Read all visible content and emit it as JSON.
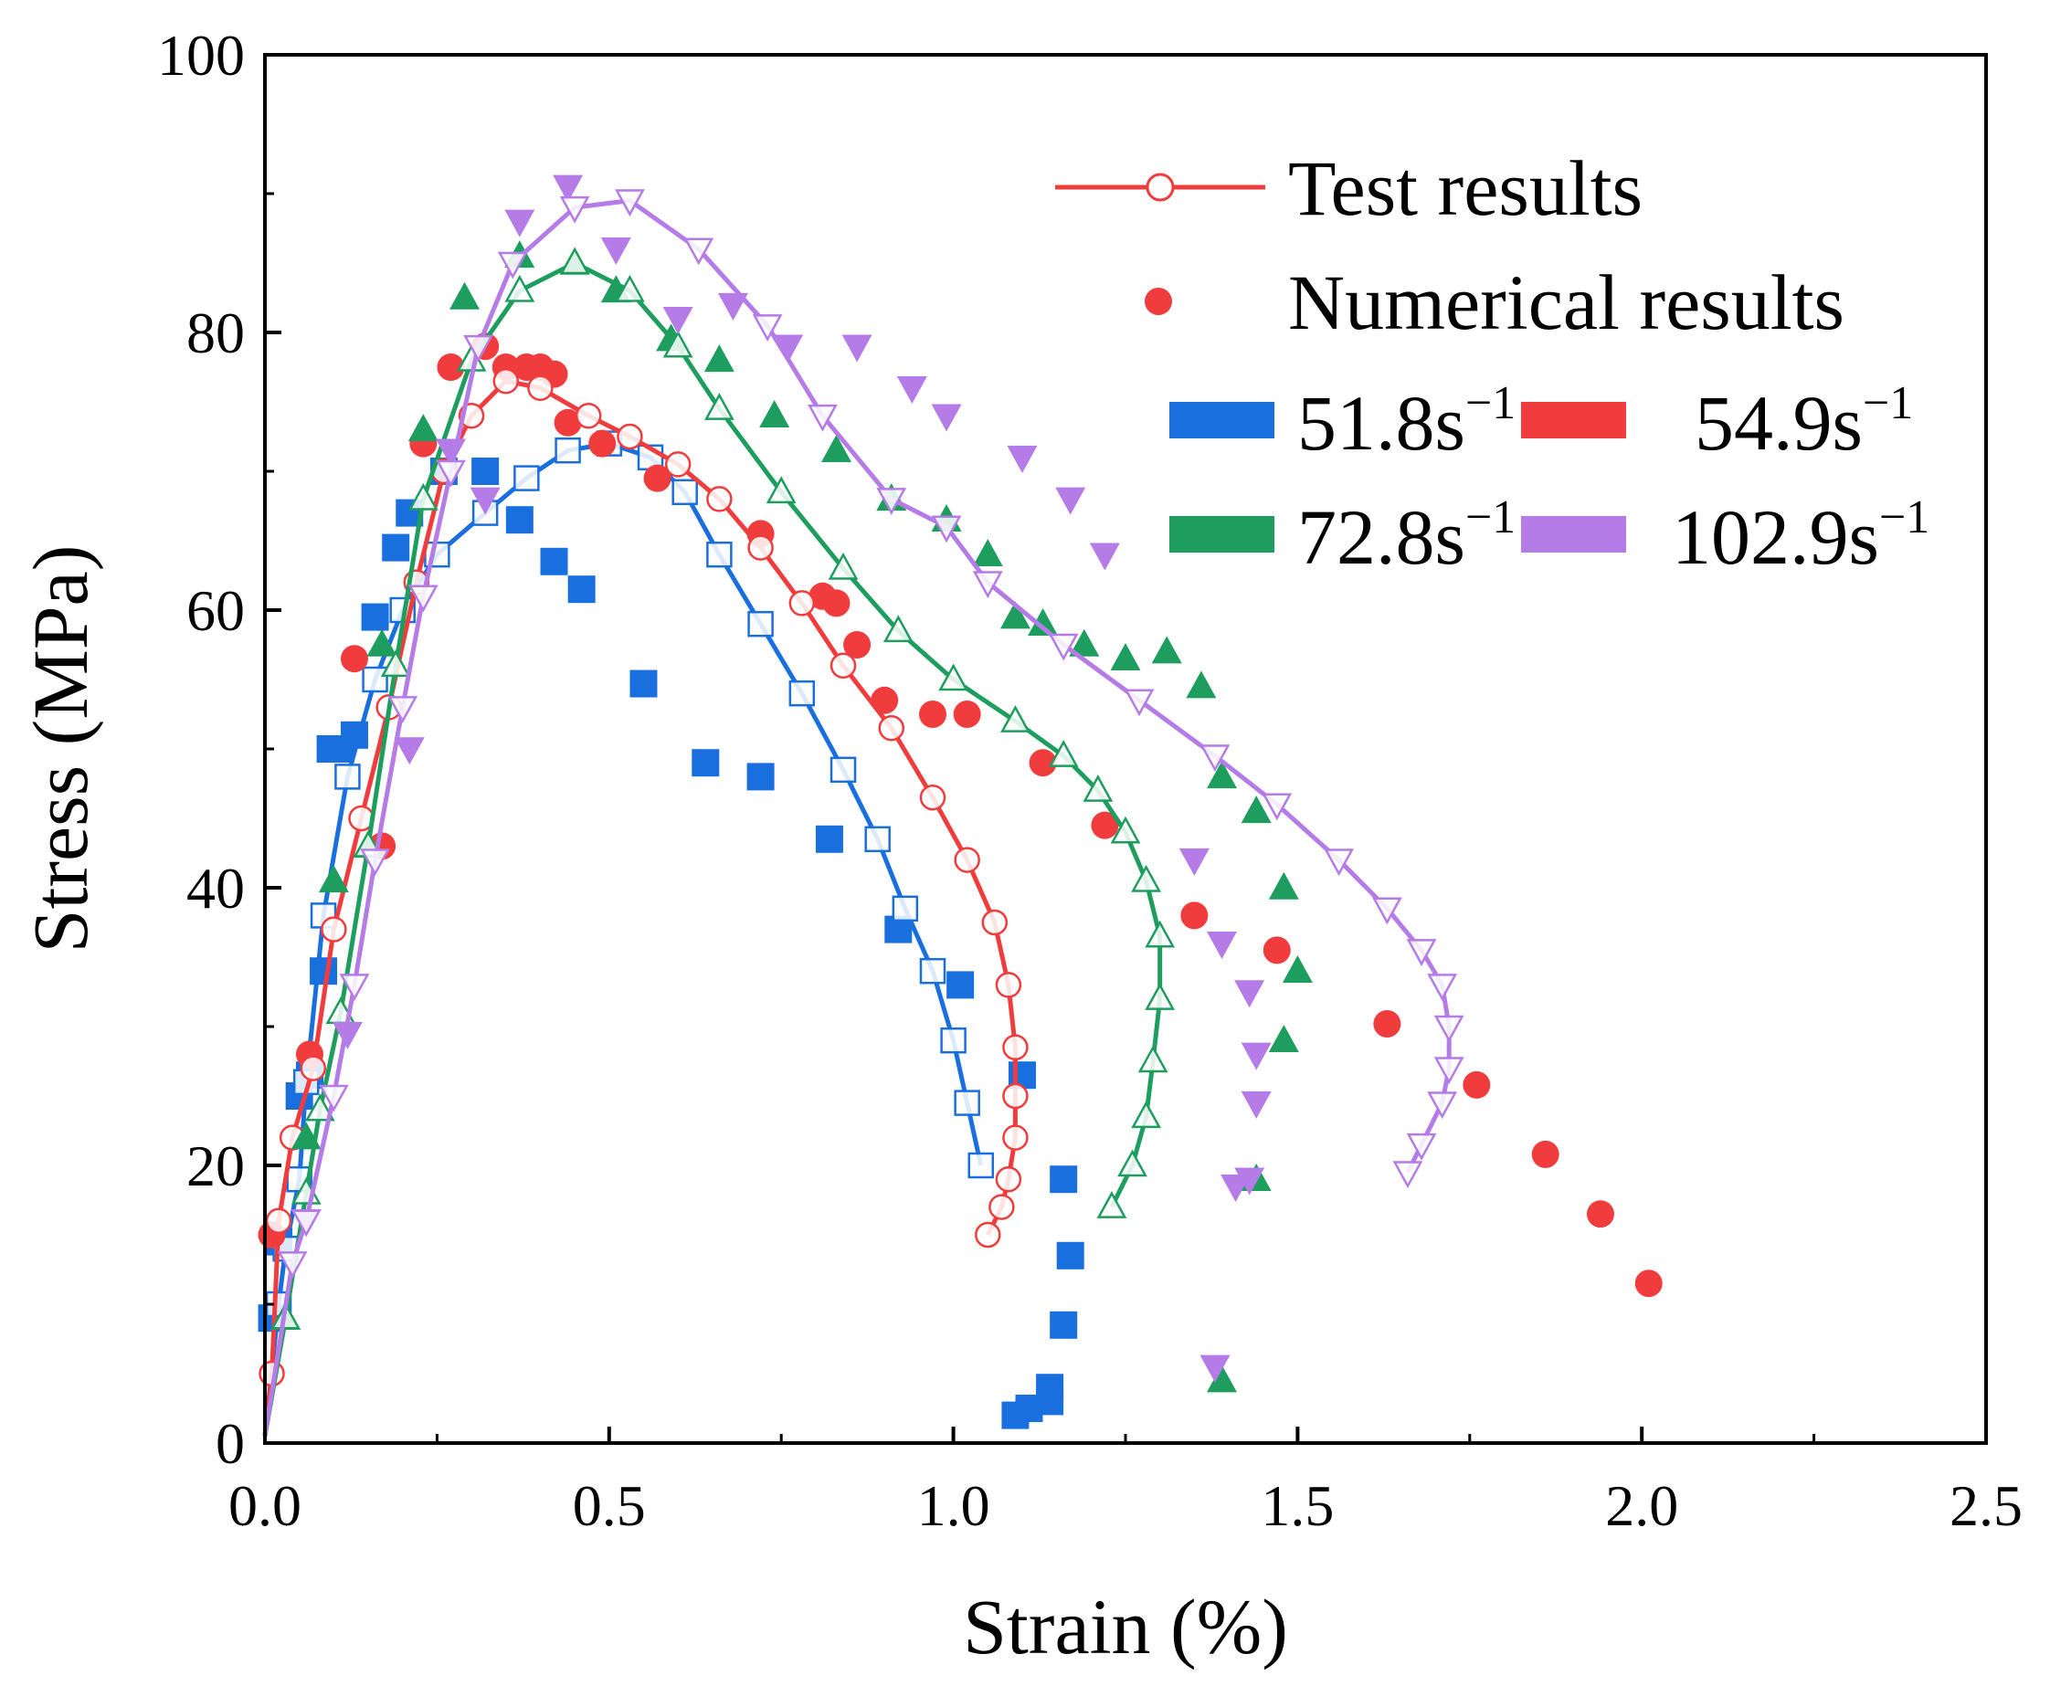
{
  "chart_data": {
    "type": "scatter",
    "title": "",
    "xlabel": "Strain (%)",
    "ylabel": "Stress (MPa)",
    "xlim": [
      0,
      2.5
    ],
    "ylim": [
      0,
      100
    ],
    "xticks": [
      "0.0",
      "0.5",
      "1.0",
      "1.5",
      "2.0",
      "2.5"
    ],
    "yticks": [
      "0",
      "20",
      "40",
      "60",
      "80",
      "100"
    ],
    "legend": {
      "position": "top-right",
      "test_label": "Test results",
      "numerical_label": "Numerical results",
      "rates": [
        {
          "base": "51.8s",
          "sup": "−1",
          "color": "#1a6fdf"
        },
        {
          "base": "54.9s",
          "sup": "−1",
          "color": "#f03c3c"
        },
        {
          "base": "72.8s",
          "sup": "−1",
          "color": "#1e9e5e"
        },
        {
          "base": "102.9s",
          "sup": "−1",
          "color": "#b57be6"
        }
      ],
      "marker_color": "#f03c3c"
    },
    "series": [
      {
        "name": "51.8s−1",
        "color": "#1a6fdf",
        "marker": "square",
        "test": [
          [
            0.0,
            0.5
          ],
          [
            0.02,
            10
          ],
          [
            0.03,
            14
          ],
          [
            0.05,
            19
          ],
          [
            0.06,
            26
          ],
          [
            0.085,
            38
          ],
          [
            0.12,
            48
          ],
          [
            0.16,
            55
          ],
          [
            0.2,
            60
          ],
          [
            0.25,
            64
          ],
          [
            0.32,
            67
          ],
          [
            0.38,
            69.5
          ],
          [
            0.44,
            71.5
          ],
          [
            0.5,
            72
          ],
          [
            0.56,
            71
          ],
          [
            0.61,
            68.5
          ],
          [
            0.66,
            64
          ],
          [
            0.72,
            59
          ],
          [
            0.78,
            54
          ],
          [
            0.84,
            48.5
          ],
          [
            0.89,
            43.5
          ],
          [
            0.93,
            38.5
          ],
          [
            0.97,
            34
          ],
          [
            1.0,
            29
          ],
          [
            1.02,
            24.5
          ],
          [
            1.04,
            20
          ]
        ],
        "numerical": [
          [
            0.01,
            9
          ],
          [
            0.02,
            14.5
          ],
          [
            0.05,
            25
          ],
          [
            0.065,
            26.5
          ],
          [
            0.085,
            34
          ],
          [
            0.095,
            50
          ],
          [
            0.11,
            50
          ],
          [
            0.13,
            51
          ],
          [
            0.16,
            59.5
          ],
          [
            0.19,
            64.5
          ],
          [
            0.21,
            67
          ],
          [
            0.26,
            70
          ],
          [
            0.32,
            70
          ],
          [
            0.37,
            66.5
          ],
          [
            0.42,
            63.5
          ],
          [
            0.46,
            61.5
          ],
          [
            0.55,
            54.7
          ],
          [
            0.64,
            49
          ],
          [
            0.72,
            48
          ],
          [
            0.82,
            43.5
          ],
          [
            0.92,
            37
          ],
          [
            1.01,
            33
          ],
          [
            1.1,
            26.5
          ],
          [
            1.09,
            2
          ],
          [
            1.11,
            2.5
          ],
          [
            1.14,
            3
          ],
          [
            1.14,
            4
          ],
          [
            1.16,
            8.5
          ],
          [
            1.16,
            19
          ],
          [
            1.17,
            13.5
          ]
        ]
      },
      {
        "name": "54.9s−1",
        "color": "#f03c3c",
        "marker": "circle",
        "test": [
          [
            0.0,
            0.5
          ],
          [
            0.01,
            5
          ],
          [
            0.02,
            16
          ],
          [
            0.04,
            22
          ],
          [
            0.07,
            27
          ],
          [
            0.1,
            37
          ],
          [
            0.14,
            45
          ],
          [
            0.18,
            53
          ],
          [
            0.22,
            62
          ],
          [
            0.26,
            70
          ],
          [
            0.3,
            74
          ],
          [
            0.35,
            76.5
          ],
          [
            0.4,
            76
          ],
          [
            0.47,
            74
          ],
          [
            0.53,
            72.5
          ],
          [
            0.6,
            70.5
          ],
          [
            0.66,
            68
          ],
          [
            0.72,
            64.5
          ],
          [
            0.78,
            60.5
          ],
          [
            0.84,
            56
          ],
          [
            0.91,
            51.5
          ],
          [
            0.97,
            46.5
          ],
          [
            1.02,
            42
          ],
          [
            1.06,
            37.5
          ],
          [
            1.08,
            33
          ],
          [
            1.09,
            28.5
          ],
          [
            1.09,
            25
          ],
          [
            1.09,
            22
          ],
          [
            1.08,
            19
          ],
          [
            1.07,
            17
          ],
          [
            1.05,
            15
          ]
        ],
        "numerical": [
          [
            0.01,
            15
          ],
          [
            0.065,
            28
          ],
          [
            0.13,
            56.5
          ],
          [
            0.17,
            43
          ],
          [
            0.23,
            72
          ],
          [
            0.27,
            77.5
          ],
          [
            0.32,
            79
          ],
          [
            0.35,
            77.5
          ],
          [
            0.38,
            77.5
          ],
          [
            0.4,
            77.5
          ],
          [
            0.42,
            77
          ],
          [
            0.44,
            73.5
          ],
          [
            0.49,
            72
          ],
          [
            0.57,
            69.5
          ],
          [
            0.72,
            65.5
          ],
          [
            0.81,
            61
          ],
          [
            0.83,
            60.5
          ],
          [
            0.86,
            57.5
          ],
          [
            0.9,
            53.5
          ],
          [
            0.97,
            52.5
          ],
          [
            1.02,
            52.5
          ],
          [
            1.13,
            49
          ],
          [
            1.22,
            44.5
          ],
          [
            1.35,
            38
          ],
          [
            1.47,
            35.5
          ],
          [
            1.63,
            30.2
          ],
          [
            1.76,
            25.8
          ],
          [
            1.86,
            20.8
          ],
          [
            1.94,
            16.5
          ],
          [
            2.01,
            11.5
          ]
        ]
      },
      {
        "name": "72.8s−1",
        "color": "#1e9e5e",
        "marker": "triangle-up",
        "test": [
          [
            0.0,
            0.5
          ],
          [
            0.03,
            9
          ],
          [
            0.06,
            18
          ],
          [
            0.08,
            24
          ],
          [
            0.11,
            31
          ],
          [
            0.15,
            43
          ],
          [
            0.19,
            56
          ],
          [
            0.23,
            68
          ],
          [
            0.3,
            78
          ],
          [
            0.37,
            83
          ],
          [
            0.45,
            85
          ],
          [
            0.53,
            83
          ],
          [
            0.6,
            79
          ],
          [
            0.66,
            74.5
          ],
          [
            0.75,
            68.5
          ],
          [
            0.84,
            63
          ],
          [
            0.92,
            58.5
          ],
          [
            1.0,
            55
          ],
          [
            1.09,
            52
          ],
          [
            1.16,
            49.5
          ],
          [
            1.21,
            47
          ],
          [
            1.25,
            44
          ],
          [
            1.28,
            40.5
          ],
          [
            1.3,
            36.5
          ],
          [
            1.3,
            32
          ],
          [
            1.29,
            27.5
          ],
          [
            1.28,
            23.5
          ],
          [
            1.26,
            20
          ],
          [
            1.23,
            17
          ]
        ],
        "numerical": [
          [
            0.03,
            9
          ],
          [
            0.06,
            22
          ],
          [
            0.1,
            40.5
          ],
          [
            0.15,
            43
          ],
          [
            0.17,
            57.5
          ],
          [
            0.23,
            73
          ],
          [
            0.29,
            82.5
          ],
          [
            0.37,
            85.5
          ],
          [
            0.45,
            85
          ],
          [
            0.51,
            83
          ],
          [
            0.59,
            79.5
          ],
          [
            0.66,
            78
          ],
          [
            0.74,
            74
          ],
          [
            0.83,
            71.5
          ],
          [
            0.91,
            68
          ],
          [
            0.99,
            66.5
          ],
          [
            1.05,
            64
          ],
          [
            1.09,
            59.5
          ],
          [
            1.13,
            59
          ],
          [
            1.19,
            57.5
          ],
          [
            1.25,
            56.5
          ],
          [
            1.31,
            57
          ],
          [
            1.36,
            54.5
          ],
          [
            1.39,
            48
          ],
          [
            1.44,
            45.5
          ],
          [
            1.48,
            40
          ],
          [
            1.5,
            34
          ],
          [
            1.48,
            29
          ],
          [
            1.44,
            19
          ],
          [
            1.39,
            4.5
          ]
        ]
      },
      {
        "name": "102.9s−1",
        "color": "#b57be6",
        "marker": "triangle-down",
        "test": [
          [
            0.0,
            0.5
          ],
          [
            0.04,
            13
          ],
          [
            0.06,
            16
          ],
          [
            0.1,
            25
          ],
          [
            0.13,
            33
          ],
          [
            0.16,
            42
          ],
          [
            0.2,
            53
          ],
          [
            0.23,
            61
          ],
          [
            0.27,
            70
          ],
          [
            0.31,
            79
          ],
          [
            0.36,
            85
          ],
          [
            0.45,
            89
          ],
          [
            0.53,
            89.5
          ],
          [
            0.63,
            86
          ],
          [
            0.73,
            80.5
          ],
          [
            0.81,
            74
          ],
          [
            0.91,
            68
          ],
          [
            0.99,
            66
          ],
          [
            1.05,
            62
          ],
          [
            1.16,
            57.5
          ],
          [
            1.27,
            53.5
          ],
          [
            1.38,
            49.5
          ],
          [
            1.47,
            46
          ],
          [
            1.56,
            42
          ],
          [
            1.63,
            38.5
          ],
          [
            1.68,
            35.5
          ],
          [
            1.71,
            33
          ],
          [
            1.72,
            30
          ],
          [
            1.72,
            27
          ],
          [
            1.71,
            24.5
          ],
          [
            1.68,
            21.5
          ],
          [
            1.66,
            19.5
          ]
        ],
        "numerical": [
          [
            0.06,
            16
          ],
          [
            0.12,
            29.5
          ],
          [
            0.21,
            50
          ],
          [
            0.27,
            71.5
          ],
          [
            0.32,
            68
          ],
          [
            0.37,
            88
          ],
          [
            0.44,
            90.5
          ],
          [
            0.51,
            86
          ],
          [
            0.6,
            81
          ],
          [
            0.68,
            82
          ],
          [
            0.76,
            79
          ],
          [
            0.86,
            79
          ],
          [
            0.94,
            76
          ],
          [
            0.99,
            74
          ],
          [
            1.1,
            71
          ],
          [
            1.17,
            68
          ],
          [
            1.22,
            64
          ],
          [
            1.35,
            42
          ],
          [
            1.39,
            36
          ],
          [
            1.43,
            32.5
          ],
          [
            1.44,
            28
          ],
          [
            1.44,
            24.5
          ],
          [
            1.41,
            18.5
          ],
          [
            1.43,
            19
          ],
          [
            1.38,
            5.5
          ]
        ]
      }
    ]
  }
}
